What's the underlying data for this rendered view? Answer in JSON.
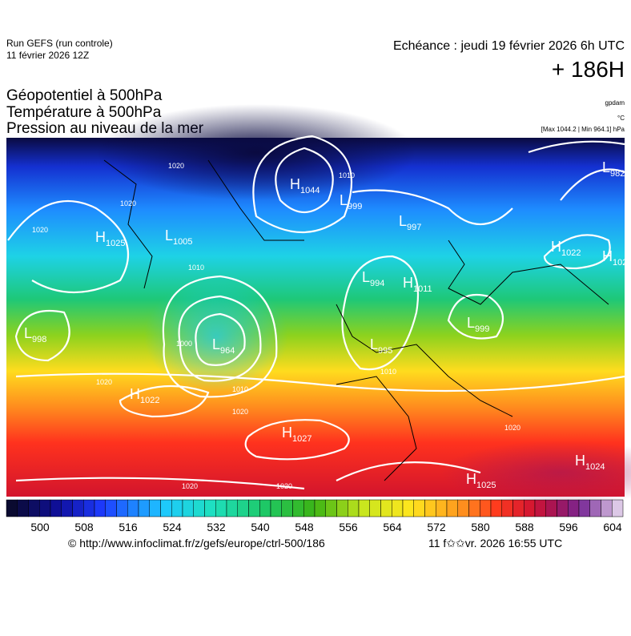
{
  "header": {
    "run": "Run GEFS (run controle)",
    "run_date": "11 février 2026 12Z",
    "echeance": "Echéance : jeudi 19 février 2026 6h UTC",
    "horizon": "+ 186H",
    "fields": [
      "Géopotentiel à 500hPa",
      "Température à 500hPa",
      "Pression au niveau de la mer"
    ],
    "units": [
      "gpdam",
      "°C",
      "[Max 1044.2 | Min 964.1] hPa"
    ]
  },
  "systems": [
    {
      "letter": "L",
      "value": "982"
    },
    {
      "letter": "H",
      "value": "1044"
    },
    {
      "letter": "L",
      "value": "999"
    },
    {
      "letter": "L",
      "value": "997"
    },
    {
      "letter": "H",
      "value": "1025"
    },
    {
      "letter": "L",
      "value": "1005"
    },
    {
      "letter": "H",
      "value": "1022"
    },
    {
      "letter": "H",
      "value": "102"
    },
    {
      "letter": "L",
      "value": "994"
    },
    {
      "letter": "H",
      "value": "1011"
    },
    {
      "letter": "L",
      "value": "999"
    },
    {
      "letter": "L",
      "value": "998"
    },
    {
      "letter": "L",
      "value": "964"
    },
    {
      "letter": "L",
      "value": "995"
    },
    {
      "letter": "H",
      "value": "1022"
    },
    {
      "letter": "H",
      "value": "1027"
    },
    {
      "letter": "H",
      "value": "1024"
    },
    {
      "letter": "H",
      "value": "1025"
    }
  ],
  "isobar_labels": [
    "1020",
    "1020",
    "1020",
    "1010",
    "1010",
    "1000",
    "1020",
    "1010",
    "1020",
    "1020",
    "1020",
    "1020",
    "1010"
  ],
  "colorbar": {
    "ticks": [
      500,
      508,
      516,
      524,
      532,
      540,
      548,
      556,
      564,
      572,
      580,
      588,
      596,
      604
    ]
  },
  "footer": {
    "url": "© http://www.infoclimat.fr/z/gefs/europe/ctrl-500/186",
    "date": "11 f✩✩vr. 2026 16:55 UTC"
  }
}
